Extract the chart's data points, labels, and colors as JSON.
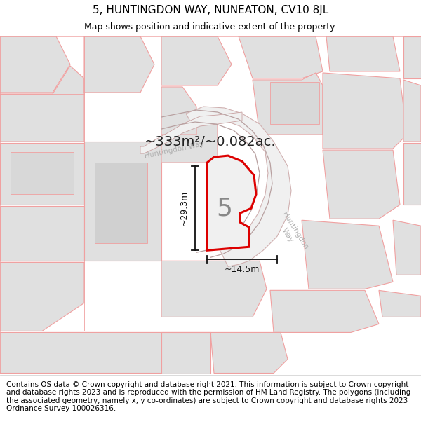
{
  "title": "5, HUNTINGDON WAY, NUNEATON, CV10 8JL",
  "subtitle": "Map shows position and indicative extent of the property.",
  "area_label": "~333m²/~0.082ac.",
  "plot_number": "5",
  "width_label": "~14.5m",
  "height_label": "~29.3m",
  "footer_text": "Contains OS data © Crown copyright and database right 2021. This information is subject to Crown copyright and database rights 2023 and is reproduced with the permission of HM Land Registry. The polygons (including the associated geometry, namely x, y co-ordinates) are subject to Crown copyright and database rights 2023 Ordnance Survey 100026316.",
  "map_bg": "#ffffff",
  "plot_fill": "#e8e8e8",
  "plot_edge_color": "#dd0000",
  "prop_fill": "#e0e0e0",
  "prop_edge": "#f0a0a0",
  "road_label_color": "#b0b0b0",
  "dim_color": "#111111",
  "title_fontsize": 11,
  "subtitle_fontsize": 9,
  "footer_fontsize": 7.5,
  "area_fontsize": 14
}
